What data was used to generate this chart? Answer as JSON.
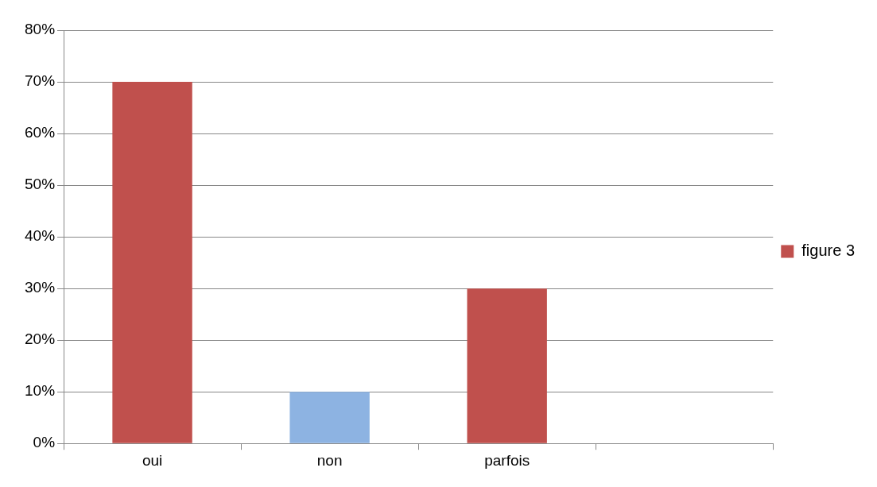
{
  "chart_data": {
    "type": "bar",
    "categories": [
      "oui",
      "non",
      "parfois",
      null
    ],
    "series": [
      {
        "name": "figure 3",
        "values": [
          70,
          10,
          30,
          null
        ]
      }
    ],
    "colors": [
      "#c0504d",
      "#8db3e2",
      "#c0504d",
      null
    ],
    "ylim": [
      0,
      80
    ],
    "yticks": [
      {
        "value": 0,
        "label": "0%"
      },
      {
        "value": 10,
        "label": "10%"
      },
      {
        "value": 20,
        "label": "20%"
      },
      {
        "value": 30,
        "label": "30%"
      },
      {
        "value": 40,
        "label": "40%"
      },
      {
        "value": 50,
        "label": "50%"
      },
      {
        "value": 60,
        "label": "60%"
      },
      {
        "value": 70,
        "label": "70%"
      },
      {
        "value": 80,
        "label": "80%"
      }
    ],
    "grid": "y",
    "legend": "right"
  }
}
